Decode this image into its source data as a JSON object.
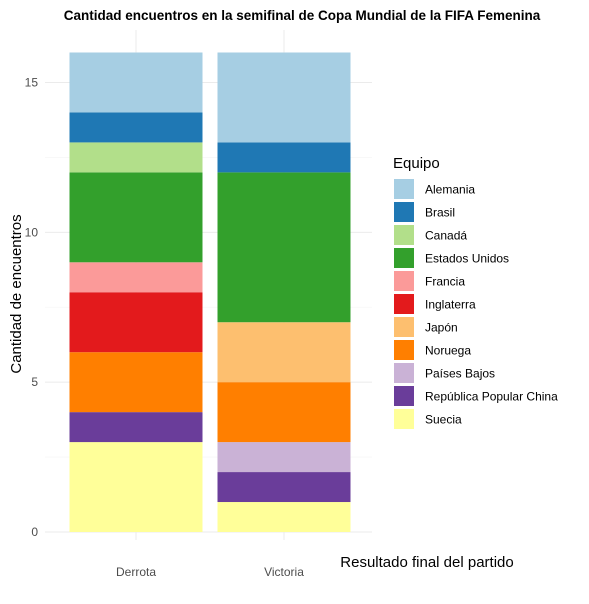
{
  "chart_data": {
    "type": "bar",
    "stacked": true,
    "title": "Cantidad encuentros en la semifinal de Copa Mundial de la FIFA Femenina",
    "xlabel": "Resultado final del partido",
    "ylabel": "Cantidad de encuentros",
    "categories": [
      "Derrota",
      "Victoria"
    ],
    "ylim": [
      0,
      16
    ],
    "yticks": [
      0,
      5,
      10,
      15
    ],
    "legend_title": "Equipo",
    "legend_position": "right",
    "grid": true,
    "series": [
      {
        "name": "Alemania",
        "color": "#A6CEE3",
        "values": [
          2,
          3
        ]
      },
      {
        "name": "Brasil",
        "color": "#1F78B4",
        "values": [
          1,
          1
        ]
      },
      {
        "name": "Canadá",
        "color": "#B2DF8A",
        "values": [
          1,
          0
        ]
      },
      {
        "name": "Estados Unidos",
        "color": "#33A02C",
        "values": [
          3,
          5
        ]
      },
      {
        "name": "Francia",
        "color": "#FB9A99",
        "values": [
          1,
          0
        ]
      },
      {
        "name": "Inglaterra",
        "color": "#E31A1C",
        "values": [
          2,
          0
        ]
      },
      {
        "name": "Japón",
        "color": "#FDBF6F",
        "values": [
          0,
          2
        ]
      },
      {
        "name": "Noruega",
        "color": "#FF7F00",
        "values": [
          2,
          2
        ]
      },
      {
        "name": "Países Bajos",
        "color": "#CAB2D6",
        "values": [
          0,
          1
        ]
      },
      {
        "name": "República Popular China",
        "color": "#6A3D9A",
        "values": [
          1,
          1
        ]
      },
      {
        "name": "Suecia",
        "color": "#FFFF99",
        "values": [
          3,
          1
        ]
      }
    ]
  }
}
